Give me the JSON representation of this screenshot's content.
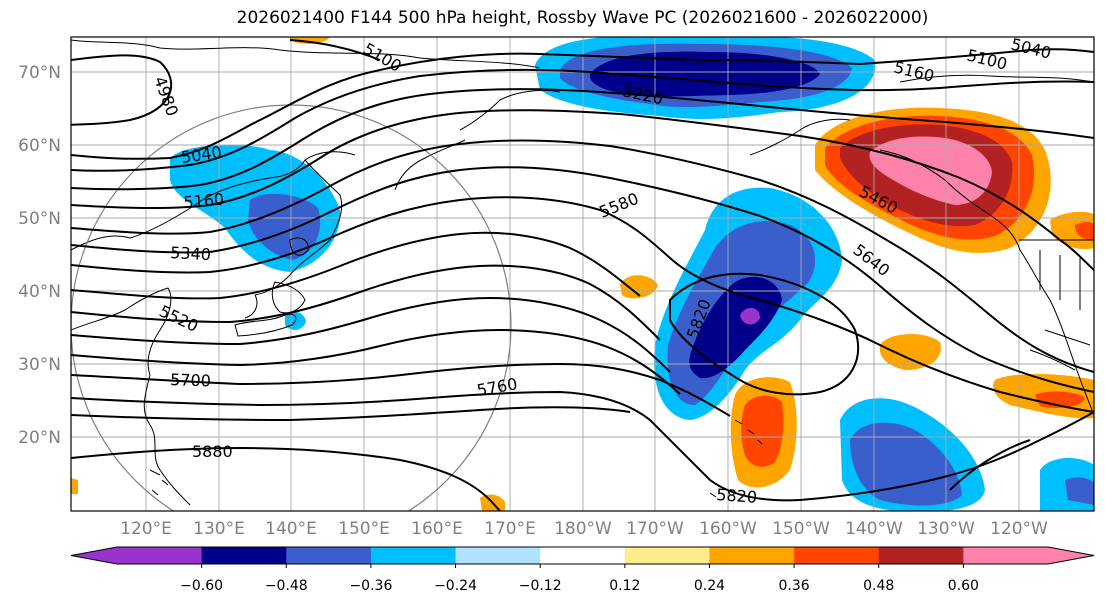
{
  "title": "2026021400 F144 500 hPa height, Rossby Wave PC (2026021600 - 2026022000)",
  "lat_labels": [
    "70°N",
    "60°N",
    "50°N",
    "40°N",
    "30°N",
    "20°N"
  ],
  "lon_labels": [
    "120°E",
    "130°E",
    "140°E",
    "150°E",
    "160°E",
    "170°E",
    "180°W",
    "170°W",
    "160°W",
    "150°W",
    "140°W",
    "130°W",
    "120°W"
  ],
  "contour_labels": [
    "5100",
    "4980",
    "5040",
    "5160",
    "5340",
    "5520",
    "5700",
    "5880",
    "5220",
    "5580",
    "5760",
    "5820",
    "5820",
    "5640",
    "5460",
    "5160",
    "5100",
    "5040"
  ],
  "colorbar": {
    "tick_labels": [
      "−0.60",
      "−0.48",
      "−0.36",
      "−0.24",
      "−0.12",
      "0.12",
      "0.24",
      "0.36",
      "0.48",
      "0.60"
    ],
    "colors": [
      "#9a32cd",
      "#00008b",
      "#3a5fcd",
      "#00bfff",
      "#b0e2ff",
      "#ffffff",
      "#ffec8b",
      "#ffa500",
      "#ff4500",
      "#b22222",
      "#ff82ab",
      "#ff82ab"
    ]
  }
}
